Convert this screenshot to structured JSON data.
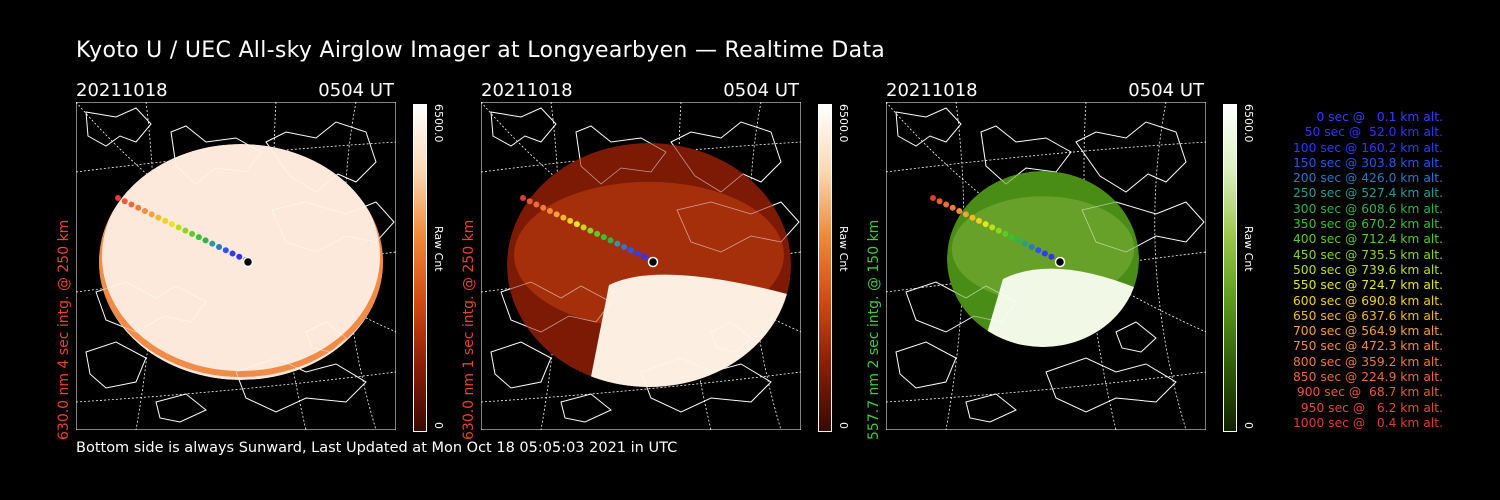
{
  "title": "Kyoto U / UEC All-sky Airglow Imager at Longyearbyen — Realtime Data",
  "footer": "Bottom side is always Sunward, Last Updated at Mon Oct 18 05:05:03 2021 in UTC",
  "panels": [
    {
      "date": "20211018",
      "time": "0504 UT",
      "label": "630.0 nm 4 sec intg. @ 250 km",
      "label_color": "#e8452a",
      "colorbar": {
        "max": "6500.0",
        "unit": "Raw Cnt",
        "min": "0",
        "colors": [
          "#ffffff",
          "#fbd9b5",
          "#f08a3a",
          "#d24a12",
          "#8a1d06",
          "#3a0800"
        ]
      },
      "image_colors": {
        "base": "#fde9dc",
        "edge": "#ee7b2e"
      },
      "level": 1.0
    },
    {
      "date": "20211018",
      "time": "0504 UT",
      "label": "630.0 nm 1 sec intg. @ 250 km",
      "label_color": "#e8452a",
      "colorbar": {
        "max": "6500.0",
        "unit": "Raw Cnt",
        "min": "0",
        "colors": [
          "#ffffff",
          "#fbd9b5",
          "#f08a3a",
          "#d24a12",
          "#8a1d06",
          "#3a0800"
        ]
      },
      "image_colors": {
        "base": "#7d1a06",
        "mid": "#c7420f",
        "bright": "#fdeee2"
      },
      "level": 0.35
    },
    {
      "date": "20211018",
      "time": "0504 UT",
      "label": "557.7 nm 2 sec intg. @ 150 km",
      "label_color": "#3fcc3a",
      "colorbar": {
        "max": "6500.0",
        "unit": "Raw Cnt",
        "min": "0",
        "colors": [
          "#ffffff",
          "#dbefc0",
          "#9cc64a",
          "#5b9b1a",
          "#2f5c08",
          "#102000"
        ]
      },
      "image_colors": {
        "base": "#4a8d16",
        "mid": "#7fb23a",
        "bright": "#f2f8e6"
      },
      "level": 0.5
    }
  ],
  "legend": [
    {
      "text": "0 sec @   0.1 km alt.",
      "color": "#3c3cff"
    },
    {
      "text": "50 sec @  52.0 km alt.",
      "color": "#3232ff"
    },
    {
      "text": "100 sec @ 160.2 km alt.",
      "color": "#2b3cff"
    },
    {
      "text": "150 sec @ 303.8 km alt.",
      "color": "#2a55e8"
    },
    {
      "text": "200 sec @ 426.0 km alt.",
      "color": "#2a78c8"
    },
    {
      "text": "250 sec @ 527.4 km alt.",
      "color": "#2a9a9a"
    },
    {
      "text": "300 sec @ 608.6 km alt.",
      "color": "#2eb34d"
    },
    {
      "text": "350 sec @ 670.2 km alt.",
      "color": "#38c22e"
    },
    {
      "text": "400 sec @ 712.4 km alt.",
      "color": "#5acc22"
    },
    {
      "text": "450 sec @ 735.5 km alt.",
      "color": "#8cd61c"
    },
    {
      "text": "500 sec @ 739.6 km alt.",
      "color": "#bce01a"
    },
    {
      "text": "550 sec @ 724.7 km alt.",
      "color": "#e6e61a"
    },
    {
      "text": "600 sec @ 690.8 km alt.",
      "color": "#f2d21a"
    },
    {
      "text": "650 sec @ 637.6 km alt.",
      "color": "#f5b82a"
    },
    {
      "text": "700 sec @ 564.9 km alt.",
      "color": "#f5a23a"
    },
    {
      "text": "750 sec @ 472.3 km alt.",
      "color": "#f58c3a"
    },
    {
      "text": "800 sec @ 359.2 km alt.",
      "color": "#f07a3a"
    },
    {
      "text": "850 sec @ 224.9 km alt.",
      "color": "#ec6a3a"
    },
    {
      "text": "900 sec @  68.7 km alt.",
      "color": "#e85a3a"
    },
    {
      "text": "950 sec @   6.2 km alt.",
      "color": "#e64a38"
    },
    {
      "text": "1000 sec @   0.4 km alt.",
      "color": "#e43a36"
    }
  ]
}
